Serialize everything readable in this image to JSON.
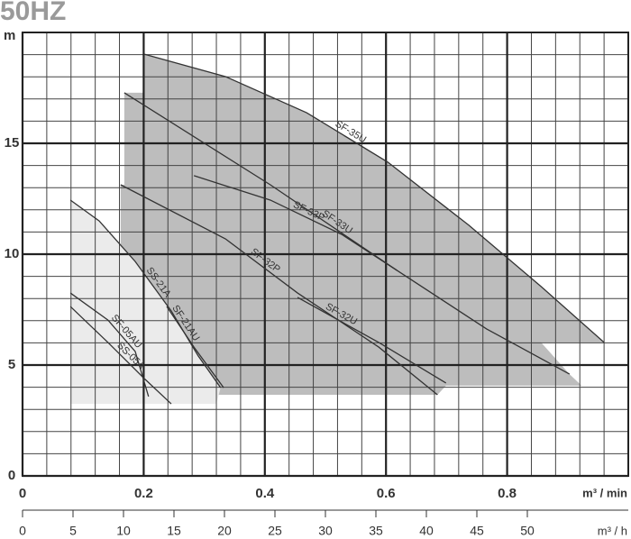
{
  "chart_data": {
    "type": "line",
    "title": "50HZ",
    "y_label": "m",
    "x_label": "m³ / min",
    "x2_label": "m³ / h",
    "xlim": [
      0,
      1.0
    ],
    "ylim": [
      0,
      20
    ],
    "xticks": [
      0,
      0.2,
      0.4,
      0.6,
      0.8
    ],
    "yticks": [
      0,
      5,
      10,
      15
    ],
    "x_minor_ticks": [
      0.04,
      0.08,
      0.12,
      0.16,
      0.24,
      0.28,
      0.32,
      0.36,
      0.44,
      0.48,
      0.52,
      0.56,
      0.64,
      0.68,
      0.72,
      0.76,
      0.84,
      0.88,
      0.92,
      0.96
    ],
    "y_minor_ticks": [
      1,
      2,
      3,
      4,
      6,
      7,
      8,
      9,
      11,
      12,
      13,
      14,
      16,
      17,
      18,
      19
    ],
    "x2lim": [
      0,
      60
    ],
    "x2ticks": [
      0,
      5,
      10,
      15,
      20,
      25,
      30,
      35,
      40,
      45,
      50
    ],
    "grid": true,
    "areas": [
      {
        "color": "#bdbdbd",
        "x": [
          0.162,
          0.162,
          0.168,
          0.168,
          0.201,
          0.201,
          0.335,
          0.469,
          0.603,
          0.737,
          0.856,
          0.96,
          0.856,
          0.903,
          0.923,
          0.699,
          0.685
        ],
        "y": [
          3.66,
          13.13,
          13.13,
          17.28,
          17.28,
          19.02,
          18.01,
          16.38,
          14.15,
          11.3,
          8.54,
          6.02,
          6.02,
          4.59,
          4.07,
          4.07,
          3.66
        ]
      },
      {
        "color": "#ebebeb",
        "x": [
          0.079,
          0.079,
          0.1265,
          0.186,
          0.2455,
          0.29,
          0.327,
          0.32
        ],
        "y": [
          3.25,
          12.44,
          11.5,
          9.67,
          7.44,
          5.41,
          3.98,
          3.25
        ]
      }
    ],
    "series": [
      {
        "name": "SF-35U",
        "color": "#333333",
        "x": [
          0.201,
          0.335,
          0.469,
          0.603,
          0.737,
          0.856,
          0.96
        ],
        "y": [
          19.02,
          18.01,
          16.38,
          14.15,
          11.3,
          8.54,
          6.02
        ]
      },
      {
        "name": "SF-33U",
        "color": "#333333",
        "x": [
          0.168,
          0.409,
          0.618,
          0.766,
          0.903
        ],
        "y": [
          17.28,
          13.13,
          9.27,
          6.63,
          4.59
        ]
      },
      {
        "name": "SF-33P",
        "color": "#333333",
        "x": [
          0.283,
          0.409,
          0.527,
          0.618
        ],
        "y": [
          13.54,
          12.44,
          10.89,
          9.27
        ]
      },
      {
        "name": "SF-32P",
        "color": "#333333",
        "x": [
          0.162,
          0.335,
          0.454,
          0.588,
          0.685
        ],
        "y": [
          13.13,
          10.69,
          8.25,
          5.81,
          3.66
        ]
      },
      {
        "name": "SF-32U",
        "color": "#333333",
        "x": [
          0.454,
          0.588,
          0.699
        ],
        "y": [
          8.05,
          6.02,
          4.19
        ]
      },
      {
        "name": "SS-21A",
        "color": "#333333",
        "x": [
          0.079,
          0.1265,
          0.186,
          0.2455,
          0.29,
          0.327
        ],
        "y": [
          12.44,
          11.5,
          9.67,
          7.44,
          5.41,
          3.98
        ]
      },
      {
        "name": "SF-21AU",
        "color": "#333333",
        "x": [
          0.238,
          0.283,
          0.332
        ],
        "y": [
          7.64,
          5.81,
          3.98
        ]
      },
      {
        "name": "SF-05AU",
        "color": "#333333",
        "x": [
          0.079,
          0.141,
          0.186,
          0.208
        ],
        "y": [
          8.25,
          7.03,
          5.61,
          3.58
        ]
      },
      {
        "name": "SS-05A",
        "color": "#333333",
        "x": [
          0.079,
          0.141,
          0.201,
          0.2455
        ],
        "y": [
          7.64,
          6.02,
          4.39,
          3.25
        ]
      }
    ]
  }
}
